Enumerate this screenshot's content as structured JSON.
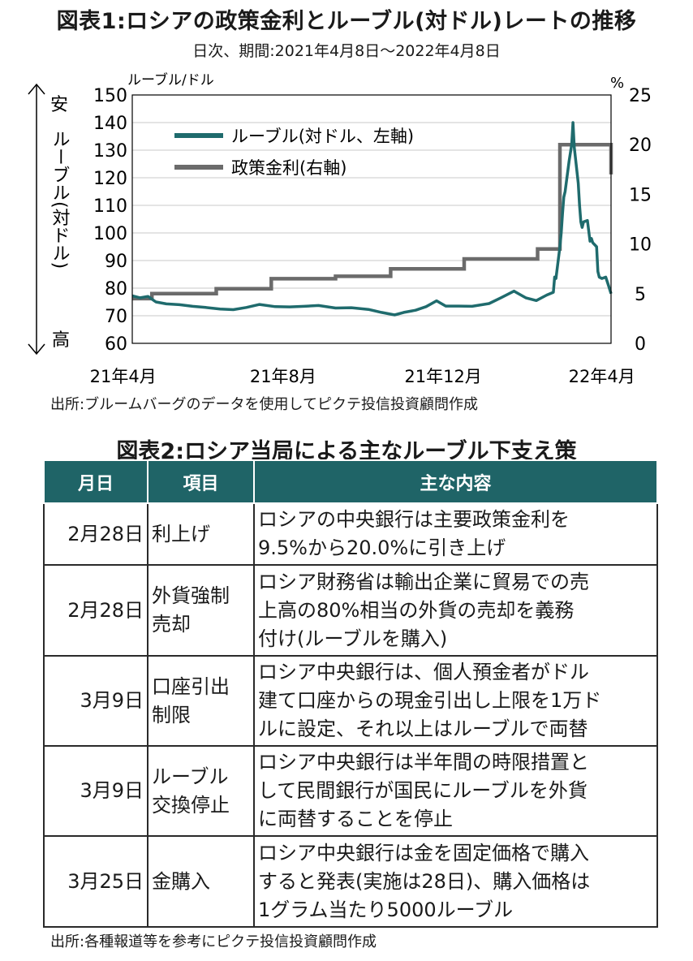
{
  "figure1": {
    "title": "図表1:ロシアの政策金利とルーブル(対ドル)レートの推移",
    "subtitle": "日次、期間:2021年4月8日～2022年4月8日",
    "source": "出所:ブルームバーグのデータを使用してピクテ投信投資顧問作成"
  },
  "chart_data": {
    "type": "line",
    "left_axis": {
      "unit": "ルーブル/ドル",
      "min": 60,
      "max": 150,
      "ticks": [
        60,
        70,
        80,
        90,
        100,
        110,
        120,
        130,
        140,
        150
      ],
      "side_label_top": "安",
      "side_label_middle": "ルーブル(対ドル)",
      "side_label_bottom": "高"
    },
    "right_axis": {
      "unit": "%",
      "min": 0,
      "max": 25,
      "ticks": [
        0,
        5,
        10,
        15,
        20,
        25
      ]
    },
    "x_axis": {
      "start": "2021-04-08",
      "end": "2022-04-08",
      "tick_labels": [
        "21年4月",
        "21年8月",
        "21年12月",
        "22年4月"
      ],
      "tick_dates": [
        "2021-04-01",
        "2021-08-01",
        "2021-12-01",
        "2022-04-01"
      ]
    },
    "grid": true,
    "legend_position": "top-left",
    "series": [
      {
        "name": "ルーブル(対ドル、左軸)",
        "color": "#1f6b6d",
        "axis": "left",
        "points": [
          [
            "2021-04-08",
            77.2
          ],
          [
            "2021-04-14",
            76.5
          ],
          [
            "2021-04-20",
            77.0
          ],
          [
            "2021-04-26",
            75.0
          ],
          [
            "2021-05-04",
            74.3
          ],
          [
            "2021-05-14",
            74.0
          ],
          [
            "2021-05-24",
            73.4
          ],
          [
            "2021-06-03",
            73.0
          ],
          [
            "2021-06-14",
            72.4
          ],
          [
            "2021-06-24",
            72.2
          ],
          [
            "2021-07-04",
            73.0
          ],
          [
            "2021-07-14",
            74.1
          ],
          [
            "2021-07-26",
            73.3
          ],
          [
            "2021-08-06",
            73.2
          ],
          [
            "2021-08-17",
            73.4
          ],
          [
            "2021-08-28",
            73.7
          ],
          [
            "2021-09-10",
            72.8
          ],
          [
            "2021-09-22",
            72.9
          ],
          [
            "2021-10-05",
            72.3
          ],
          [
            "2021-10-15",
            71.2
          ],
          [
            "2021-10-25",
            70.3
          ],
          [
            "2021-11-01",
            71.2
          ],
          [
            "2021-11-10",
            72.0
          ],
          [
            "2021-11-18",
            73.3
          ],
          [
            "2021-11-26",
            75.4
          ],
          [
            "2021-12-03",
            73.5
          ],
          [
            "2021-12-13",
            73.5
          ],
          [
            "2021-12-23",
            73.4
          ],
          [
            "2022-01-05",
            74.4
          ],
          [
            "2022-01-14",
            76.5
          ],
          [
            "2022-01-24",
            78.9
          ],
          [
            "2022-02-02",
            76.5
          ],
          [
            "2022-02-10",
            75.5
          ],
          [
            "2022-02-18",
            77.5
          ],
          [
            "2022-02-23",
            78.5
          ],
          [
            "2022-02-24",
            84.0
          ],
          [
            "2022-02-25",
            83.5
          ],
          [
            "2022-02-28",
            95.0
          ],
          [
            "2022-03-01",
            100.0
          ],
          [
            "2022-03-02",
            107.0
          ],
          [
            "2022-03-03",
            113.0
          ],
          [
            "2022-03-04",
            115.0
          ],
          [
            "2022-03-07",
            126.0
          ],
          [
            "2022-03-09",
            132.0
          ],
          [
            "2022-03-10",
            140.0
          ],
          [
            "2022-03-11",
            131.0
          ],
          [
            "2022-03-14",
            118.0
          ],
          [
            "2022-03-15",
            110.0
          ],
          [
            "2022-03-16",
            104.0
          ],
          [
            "2022-03-17",
            102.0
          ],
          [
            "2022-03-18",
            104.0
          ],
          [
            "2022-03-21",
            104.5
          ],
          [
            "2022-03-23",
            97.0
          ],
          [
            "2022-03-24",
            98.0
          ],
          [
            "2022-03-25",
            96.5
          ],
          [
            "2022-03-28",
            95.0
          ],
          [
            "2022-03-29",
            86.0
          ],
          [
            "2022-03-30",
            84.0
          ],
          [
            "2022-04-01",
            83.5
          ],
          [
            "2022-04-04",
            84.0
          ],
          [
            "2022-04-06",
            81.0
          ],
          [
            "2022-04-08",
            78.0
          ]
        ]
      },
      {
        "name": "政策金利(右軸)",
        "color": "#6b6b6b",
        "axis": "right",
        "steps": [
          [
            "2021-04-08",
            4.5
          ],
          [
            "2021-04-23",
            5.0
          ],
          [
            "2021-06-11",
            5.5
          ],
          [
            "2021-07-23",
            6.5
          ],
          [
            "2021-09-10",
            6.75
          ],
          [
            "2021-10-22",
            7.5
          ],
          [
            "2021-12-17",
            8.5
          ],
          [
            "2022-02-11",
            9.5
          ],
          [
            "2022-02-28",
            20.0
          ],
          [
            "2022-04-08",
            17.0
          ]
        ]
      }
    ]
  },
  "figure2": {
    "title": "図表2:ロシア当局による主なルーブル下支え策",
    "headers": [
      "月日",
      "項目",
      "主な内容"
    ],
    "rows": [
      {
        "date": "2月28日",
        "item": "利上げ",
        "content": "ロシアの中央銀行は主要政策金利を\n9.5%から20.0%に引き上げ"
      },
      {
        "date": "2月28日",
        "item": "外貨強制\n売却",
        "content": "ロシア財務省は輸出企業に貿易での売\n上高の80%相当の外貨の売却を義務\n付け(ルーブルを購入)"
      },
      {
        "date": "3月9日",
        "item": "口座引出\n制限",
        "content": "ロシア中央銀行は、個人預金者がドル\n建て口座からの現金引出し上限を1万ド\nルに設定、それ以上はルーブルで両替"
      },
      {
        "date": "3月9日",
        "item": "ルーブル\n交換停止",
        "content": "ロシア中央銀行は半年間の時限措置と\nして民間銀行が国民にルーブルを外貨\nに両替することを停止"
      },
      {
        "date": "3月25日",
        "item": "金購入",
        "content": "ロシア中央銀行は金を固定価格で購入\nすると発表(実施は28日)、購入価格は\n1グラム当たり5000ルーブル"
      }
    ],
    "source": "出所:各種報道等を参考にピクテ投信投資顧問作成"
  }
}
